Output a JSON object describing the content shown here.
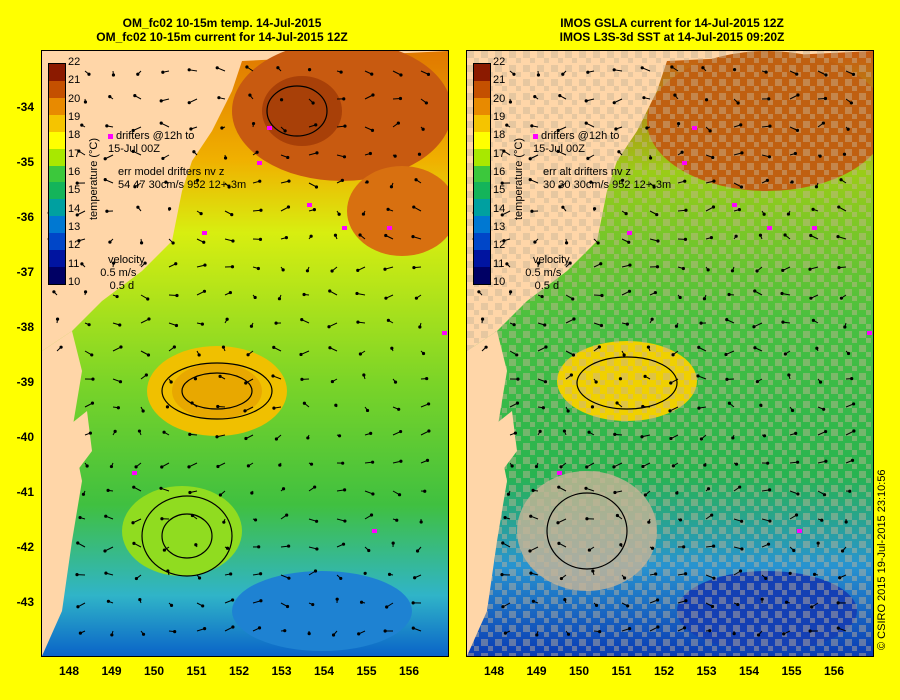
{
  "left": {
    "title_line1": "OM_fc02 10-15m temp. 14-Jul-2015",
    "title_line2": "OM_fc02 10-15m current for 14-Jul-2015 12Z",
    "drifters_line1": "drifters @12h to",
    "drifters_line2": "15-Jul 00Z",
    "err_line1": "err model drifters nv z",
    "err_line2": "54 47 30cm/s 952 12+-3m"
  },
  "right": {
    "title_line1": "IMOS GSLA current for 14-Jul-2015 12Z",
    "title_line2": "IMOS L3S-3d SST at 14-Jul-2015 09:20Z",
    "drifters_line1": "drifters @12h to",
    "drifters_line2": "15-Jul 00Z",
    "err_line1": "err alt drifters nv z",
    "err_line2": "30 30 30cm/s 952 12+-3m"
  },
  "colorbar": {
    "label": "temperature (°C)",
    "ticks": [
      "22",
      "21",
      "20",
      "19",
      "18",
      "17",
      "16",
      "15",
      "14",
      "13",
      "12",
      "11",
      "10"
    ],
    "colors": [
      "#8b1a00",
      "#c45000",
      "#e88a00",
      "#f5c400",
      "#ffff00",
      "#a8e800",
      "#3cc83c",
      "#14b45a",
      "#00a0a0",
      "#0078d2",
      "#0046c8",
      "#0014a0",
      "#000064"
    ]
  },
  "velocity": {
    "label": "velocity",
    "speed": "0.5 m/s",
    "time": "0.5 d"
  },
  "axes": {
    "xticks": [
      "148",
      "149",
      "150",
      "151",
      "152",
      "153",
      "154",
      "155",
      "156"
    ],
    "yticks": [
      "-34",
      "-35",
      "-36",
      "-37",
      "-38",
      "-39",
      "-40",
      "-41",
      "-42",
      "-43"
    ]
  },
  "credit": "© CSIRO 2015   19-Jul-2015 23:10:56",
  "colors": {
    "land": "#ffd6a8",
    "page_bg": "#ffff00",
    "drifter": "#ff00ff",
    "missing": "#c8b496"
  }
}
